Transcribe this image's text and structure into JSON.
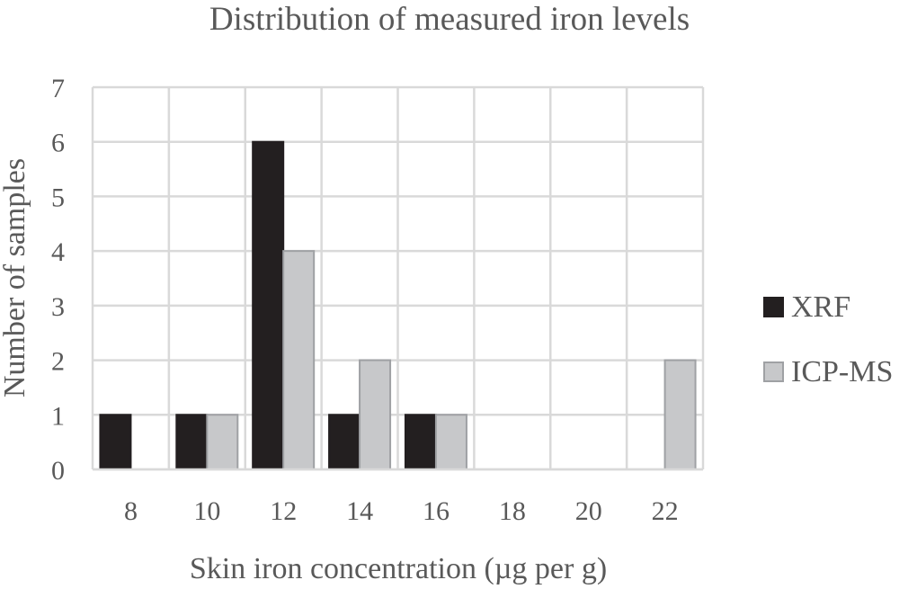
{
  "chart_data": {
    "type": "bar",
    "title": "Distribution of measured iron levels",
    "xlabel": "Skin iron concentration (µg per g)",
    "ylabel": "Number of samples",
    "categories": [
      "8",
      "10",
      "12",
      "14",
      "16",
      "18",
      "20",
      "22"
    ],
    "ylim": [
      0,
      7
    ],
    "yticks": [
      "0",
      "1",
      "2",
      "3",
      "4",
      "5",
      "6",
      "7"
    ],
    "grid": true,
    "legend_position": "right",
    "series": [
      {
        "name": "XRF",
        "color": "#231f20",
        "values": [
          1,
          1,
          6,
          1,
          1,
          0,
          0,
          0
        ]
      },
      {
        "name": "ICP-MS",
        "color": "#c7c8ca",
        "values": [
          0,
          1,
          4,
          2,
          1,
          0,
          0,
          2
        ]
      }
    ]
  }
}
